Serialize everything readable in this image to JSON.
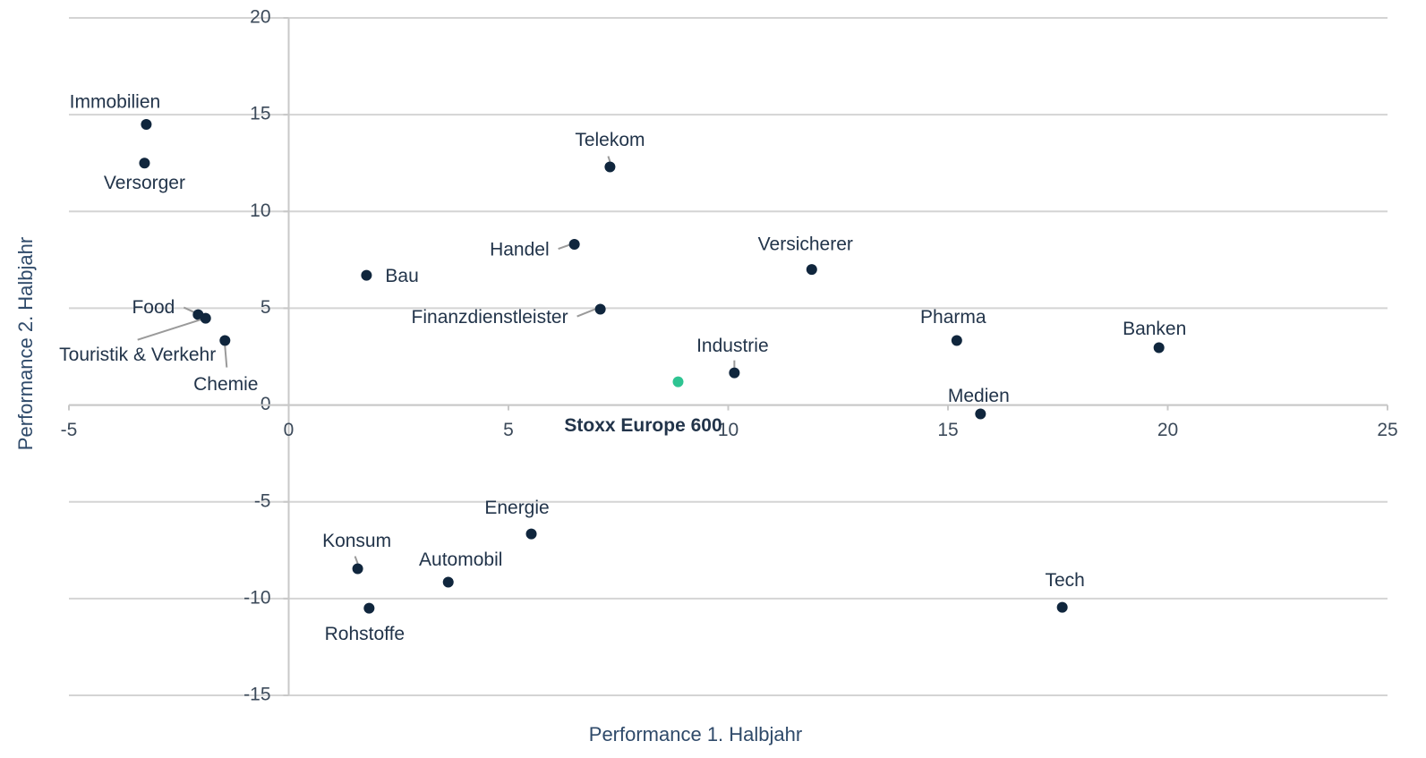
{
  "chart_data": {
    "type": "scatter",
    "x_label": "Performance 1. Halbjahr",
    "y_label": "Performance 2. Halbjahr",
    "xlim": [
      -5,
      25
    ],
    "ylim": [
      -15,
      20
    ],
    "xticks": [
      -5,
      0,
      5,
      10,
      15,
      20,
      25
    ],
    "yticks": [
      -15,
      -10,
      -5,
      0,
      5,
      10,
      15,
      20
    ],
    "grid": true,
    "points": [
      {
        "label": "Immobilien",
        "x": -3.24,
        "y": 14.5,
        "color": "#10263d"
      },
      {
        "label": "Versorger",
        "x": -3.28,
        "y": 12.5,
        "color": "#10263d"
      },
      {
        "label": "Telekom",
        "x": 7.31,
        "y": 12.3,
        "color": "#10263d"
      },
      {
        "label": "Handel",
        "x": 6.5,
        "y": 8.3,
        "color": "#10263d"
      },
      {
        "label": "Bau",
        "x": 1.77,
        "y": 6.7,
        "color": "#10263d"
      },
      {
        "label": "Versicherer",
        "x": 11.9,
        "y": 7.0,
        "color": "#10263d"
      },
      {
        "label": "Finanzdienstleister",
        "x": 7.09,
        "y": 4.95,
        "color": "#10263d"
      },
      {
        "label": "Food",
        "x": -2.06,
        "y": 4.67,
        "color": "#10263d"
      },
      {
        "label": "Touristik & Verkehr",
        "x": -1.89,
        "y": 4.48,
        "color": "#10263d"
      },
      {
        "label": "Chemie",
        "x": -1.45,
        "y": 3.33,
        "color": "#10263d"
      },
      {
        "label": "Pharma",
        "x": 15.2,
        "y": 3.33,
        "color": "#10263d"
      },
      {
        "label": "Banken",
        "x": 19.8,
        "y": 2.96,
        "color": "#10263d"
      },
      {
        "label": "Industrie",
        "x": 10.14,
        "y": 1.66,
        "color": "#10263d"
      },
      {
        "label": "Stoxx Europe 600",
        "x": 8.86,
        "y": 1.2,
        "color": "#2ec492"
      },
      {
        "label": "Medien",
        "x": 15.74,
        "y": -0.46,
        "color": "#10263d"
      },
      {
        "label": "Energie",
        "x": 5.52,
        "y": -6.66,
        "color": "#10263d"
      },
      {
        "label": "Konsum",
        "x": 1.57,
        "y": -8.46,
        "color": "#10263d"
      },
      {
        "label": "Automobil",
        "x": 3.63,
        "y": -9.15,
        "color": "#10263d"
      },
      {
        "label": "Rohstoffe",
        "x": 1.83,
        "y": -10.5,
        "color": "#10263d"
      },
      {
        "label": "Tech",
        "x": 17.6,
        "y": -10.45,
        "color": "#10263d"
      }
    ]
  }
}
